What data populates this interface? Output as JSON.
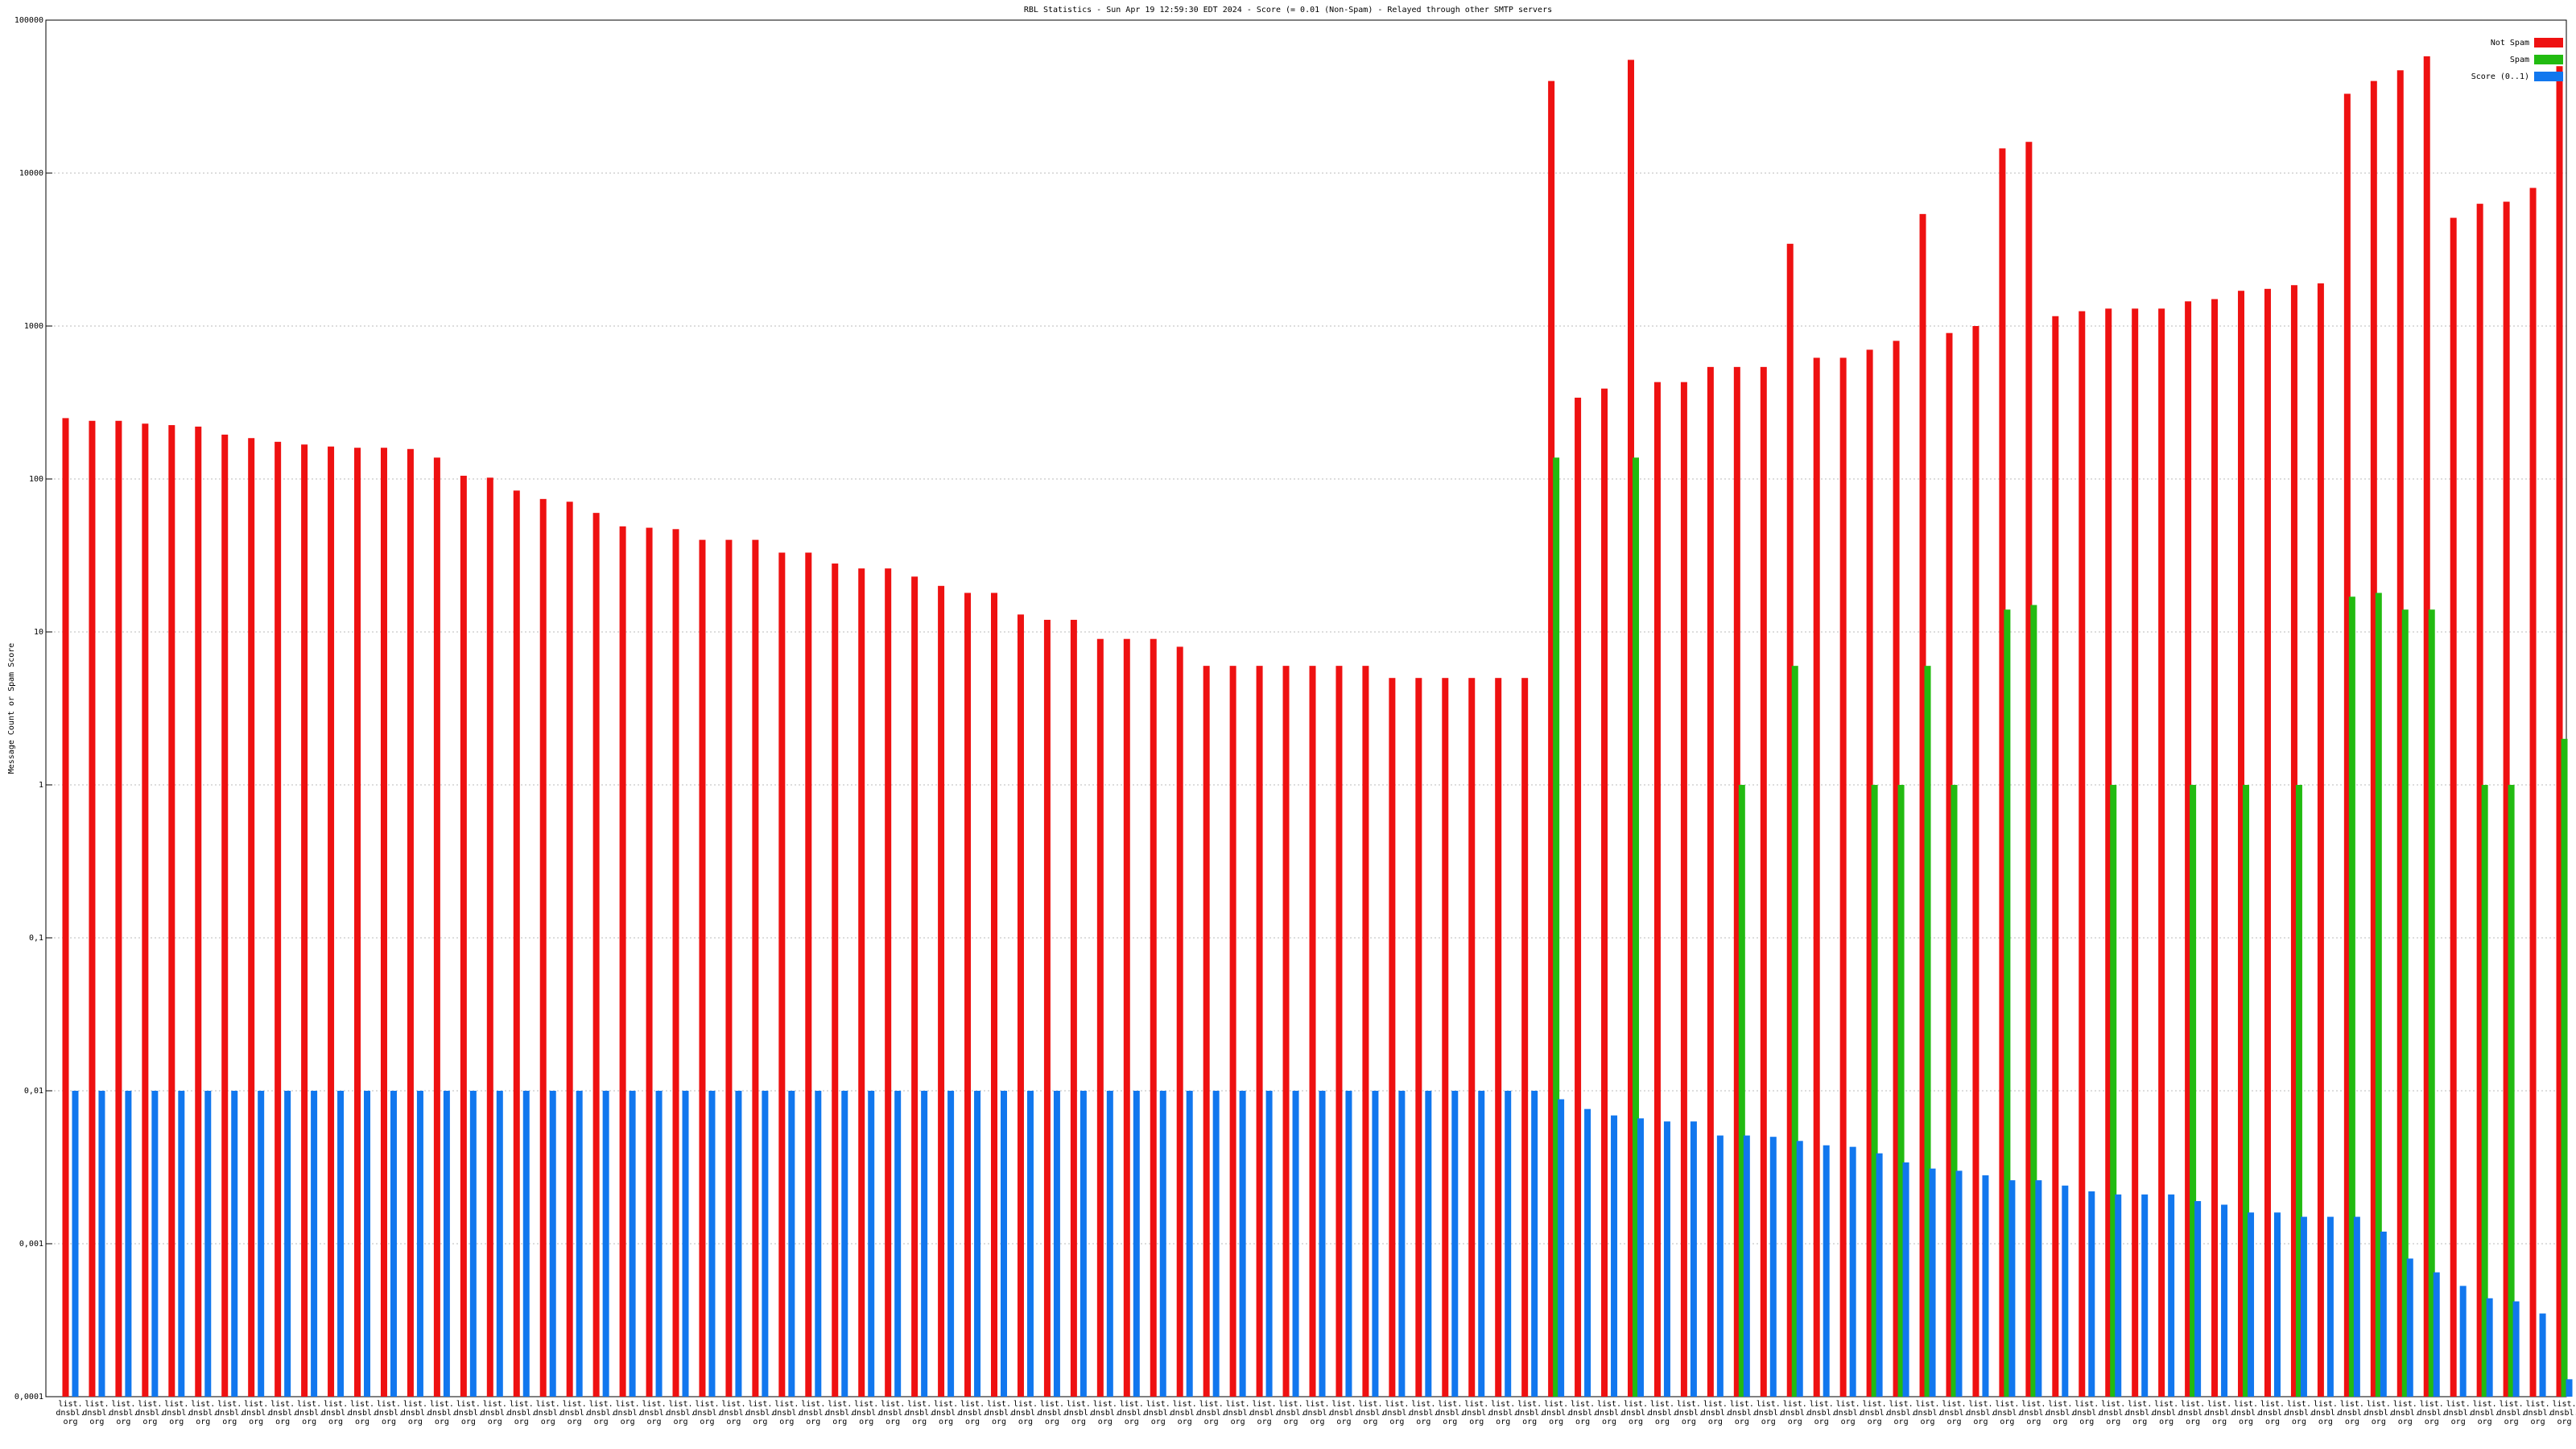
{
  "chart_data": {
    "type": "bar",
    "title": "RBL Statistics - Sun Apr 19 12:59:30 EDT 2024 - Score (= 0.01 (Non-Spam) - Relayed through other SMTP servers",
    "y_label": "Message Count or Spam Score",
    "log_scale": true,
    "grid": true,
    "legend": "top-right",
    "ylim": [
      0.0001,
      100000
    ],
    "yticks": [
      {
        "value": 0.0001,
        "label": "0,0001"
      },
      {
        "value": 0.001,
        "label": "0,001"
      },
      {
        "value": 0.01,
        "label": "0,01"
      },
      {
        "value": 0.1,
        "label": "0,1"
      },
      1,
      10,
      100,
      1000,
      10000,
      100000
    ],
    "categories": [
      "list.\ndnsbl.\norg",
      "list.\ndnsbl.\norg",
      "list.\ndnsbl.\norg",
      "list.\ndnsbl.\norg",
      "list.\ndnsbl.\norg",
      "list.\ndnsbl.\norg",
      "list.\ndnsbl.\norg",
      "list.\ndnsbl.\norg",
      "list.\ndnsbl.\norg",
      "list.\ndnsbl.\norg",
      "list.\ndnsbl.\norg",
      "list.\ndnsbl.\norg",
      "list.\ndnsbl.\norg",
      "list.\ndnsbl.\norg",
      "list.\ndnsbl.\norg",
      "list.\ndnsbl.\norg",
      "list.\ndnsbl.\norg",
      "list.\ndnsbl.\norg",
      "list.\ndnsbl.\norg",
      "list.\ndnsbl.\norg",
      "list.\ndnsbl.\norg",
      "list.\ndnsbl.\norg",
      "list.\ndnsbl.\norg",
      "list.\ndnsbl.\norg",
      "list.\ndnsbl.\norg",
      "list.\ndnsbl.\norg",
      "list.\ndnsbl.\norg",
      "list.\ndnsbl.\norg",
      "list.\ndnsbl.\norg",
      "list.\ndnsbl.\norg",
      "list.\ndnsbl.\norg",
      "list.\ndnsbl.\norg",
      "list.\ndnsbl.\norg",
      "list.\ndnsbl.\norg",
      "list.\ndnsbl.\norg",
      "list.\ndnsbl.\norg",
      "list.\ndnsbl.\norg",
      "list.\ndnsbl.\norg",
      "list.\ndnsbl.\norg",
      "list.\ndnsbl.\norg",
      "list.\ndnsbl.\norg",
      "list.\ndnsbl.\norg",
      "list.\ndnsbl.\norg",
      "list.\ndnsbl.\norg",
      "list.\ndnsbl.\norg",
      "list.\ndnsbl.\norg",
      "list.\ndnsbl.\norg",
      "list.\ndnsbl.\norg",
      "list.\ndnsbl.\norg",
      "list.\ndnsbl.\norg",
      "list.\ndnsbl.\norg",
      "list.\ndnsbl.\norg",
      "list.\ndnsbl.\norg",
      "list.\ndnsbl.\norg",
      "list.\ndnsbl.\norg",
      "list.\ndnsbl.\norg",
      "list.\ndnsbl.\norg",
      "list.\ndnsbl.\norg",
      "list.\ndnsbl.\norg",
      "list.\ndnsbl.\norg",
      "list.\ndnsbl.\norg",
      "list.\ndnsbl.\norg",
      "list.\ndnsbl.\norg",
      "list.\ndnsbl.\norg",
      "list.\ndnsbl.\norg",
      "list.\ndnsbl.\norg",
      "list.\ndnsbl.\norg",
      "list.\ndnsbl.\norg",
      "list.\ndnsbl.\norg",
      "list.\ndnsbl.\norg",
      "list.\ndnsbl.\norg",
      "list.\ndnsbl.\norg",
      "list.\ndnsbl.\norg",
      "list.\ndnsbl.\norg",
      "list.\ndnsbl.\norg",
      "list.\ndnsbl.\norg",
      "list.\ndnsbl.\norg",
      "list.\ndnsbl.\norg",
      "list.\ndnsbl.\norg",
      "list.\ndnsbl.\norg",
      "list.\ndnsbl.\norg",
      "list.\ndnsbl.\norg",
      "list.\ndnsbl.\norg",
      "list.\ndnsbl.\norg",
      "list.\ndnsbl.\norg",
      "list.\ndnsbl.\norg",
      "list.\ndnsbl.\norg",
      "list.\ndnsbl.\norg",
      "list.\ndnsbl.\norg",
      "list.\ndnsbl.\norg",
      "list.\ndnsbl.\norg",
      "list.\ndnsbl.\norg",
      "list.\ndnsbl.\norg",
      "list.\ndnsbl.\norg",
      "list.\ndnsbl.\norg"
    ],
    "series": [
      {
        "name": "Not Spam",
        "color": "#ee1111",
        "values": [
          250,
          240,
          240,
          230,
          225,
          220,
          195,
          185,
          175,
          168,
          163,
          160,
          160,
          157,
          138,
          105,
          102,
          84,
          74,
          71,
          60,
          49,
          48,
          47,
          40,
          40,
          40,
          33,
          33,
          28,
          26,
          26,
          23,
          20,
          18,
          18,
          13,
          12,
          12,
          9,
          9,
          9,
          8,
          6,
          6,
          6,
          6,
          6,
          6,
          6,
          5,
          5,
          5,
          5,
          5,
          5,
          40000,
          340,
          390,
          55000,
          430,
          430,
          540,
          540,
          540,
          3450,
          620,
          620,
          700,
          800,
          5400,
          900,
          1000,
          14500,
          16000,
          1160,
          1250,
          1300,
          1300,
          1300,
          1450,
          1500,
          1700,
          1750,
          1850,
          1900,
          33000,
          40000,
          47000,
          58000,
          5100,
          6300,
          6500,
          8000,
          50000
        ]
      },
      {
        "name": "Spam",
        "color": "#22bb11",
        "values": [
          0,
          0,
          0,
          0,
          0,
          0,
          0,
          0,
          0,
          0,
          0,
          0,
          0,
          0,
          0,
          0,
          0,
          0,
          0,
          0,
          0,
          0,
          0,
          0,
          0,
          0,
          0,
          0,
          0,
          0,
          0,
          0,
          0,
          0,
          0,
          0,
          0,
          0,
          0,
          0,
          0,
          0,
          0,
          0,
          0,
          0,
          0,
          0,
          0,
          0,
          0,
          0,
          0,
          0,
          0,
          0,
          138,
          0,
          0,
          138,
          0,
          0,
          0,
          1,
          0,
          6,
          0,
          0,
          1,
          1,
          6,
          1,
          0,
          14,
          15,
          0,
          0,
          1,
          0,
          0,
          1,
          0,
          1,
          0,
          1,
          0,
          17,
          18,
          14,
          14,
          0,
          1,
          1,
          0,
          2
        ]
      },
      {
        "name": "Score (0..1)",
        "color": "#1177ee",
        "values": [
          0.01,
          0.01,
          0.01,
          0.01,
          0.01,
          0.01,
          0.01,
          0.01,
          0.01,
          0.01,
          0.01,
          0.01,
          0.01,
          0.01,
          0.01,
          0.01,
          0.01,
          0.01,
          0.01,
          0.01,
          0.01,
          0.01,
          0.01,
          0.01,
          0.01,
          0.01,
          0.01,
          0.01,
          0.01,
          0.01,
          0.01,
          0.01,
          0.01,
          0.01,
          0.01,
          0.01,
          0.01,
          0.01,
          0.01,
          0.01,
          0.01,
          0.01,
          0.01,
          0.01,
          0.01,
          0.01,
          0.01,
          0.01,
          0.01,
          0.01,
          0.01,
          0.01,
          0.01,
          0.01,
          0.01,
          0.01,
          0.0088,
          0.0076,
          0.0069,
          0.0066,
          0.0063,
          0.0063,
          0.0051,
          0.0051,
          0.005,
          0.0047,
          0.0044,
          0.0043,
          0.0039,
          0.0034,
          0.0031,
          0.003,
          0.0028,
          0.0026,
          0.0026,
          0.0024,
          0.0022,
          0.0021,
          0.0021,
          0.0021,
          0.0019,
          0.0018,
          0.0016,
          0.0016,
          0.0015,
          0.0015,
          0.0015,
          0.0012,
          0.0008,
          0.00065,
          0.00053,
          0.00044,
          0.00042,
          0.00035,
          0.00013
        ]
      }
    ]
  }
}
